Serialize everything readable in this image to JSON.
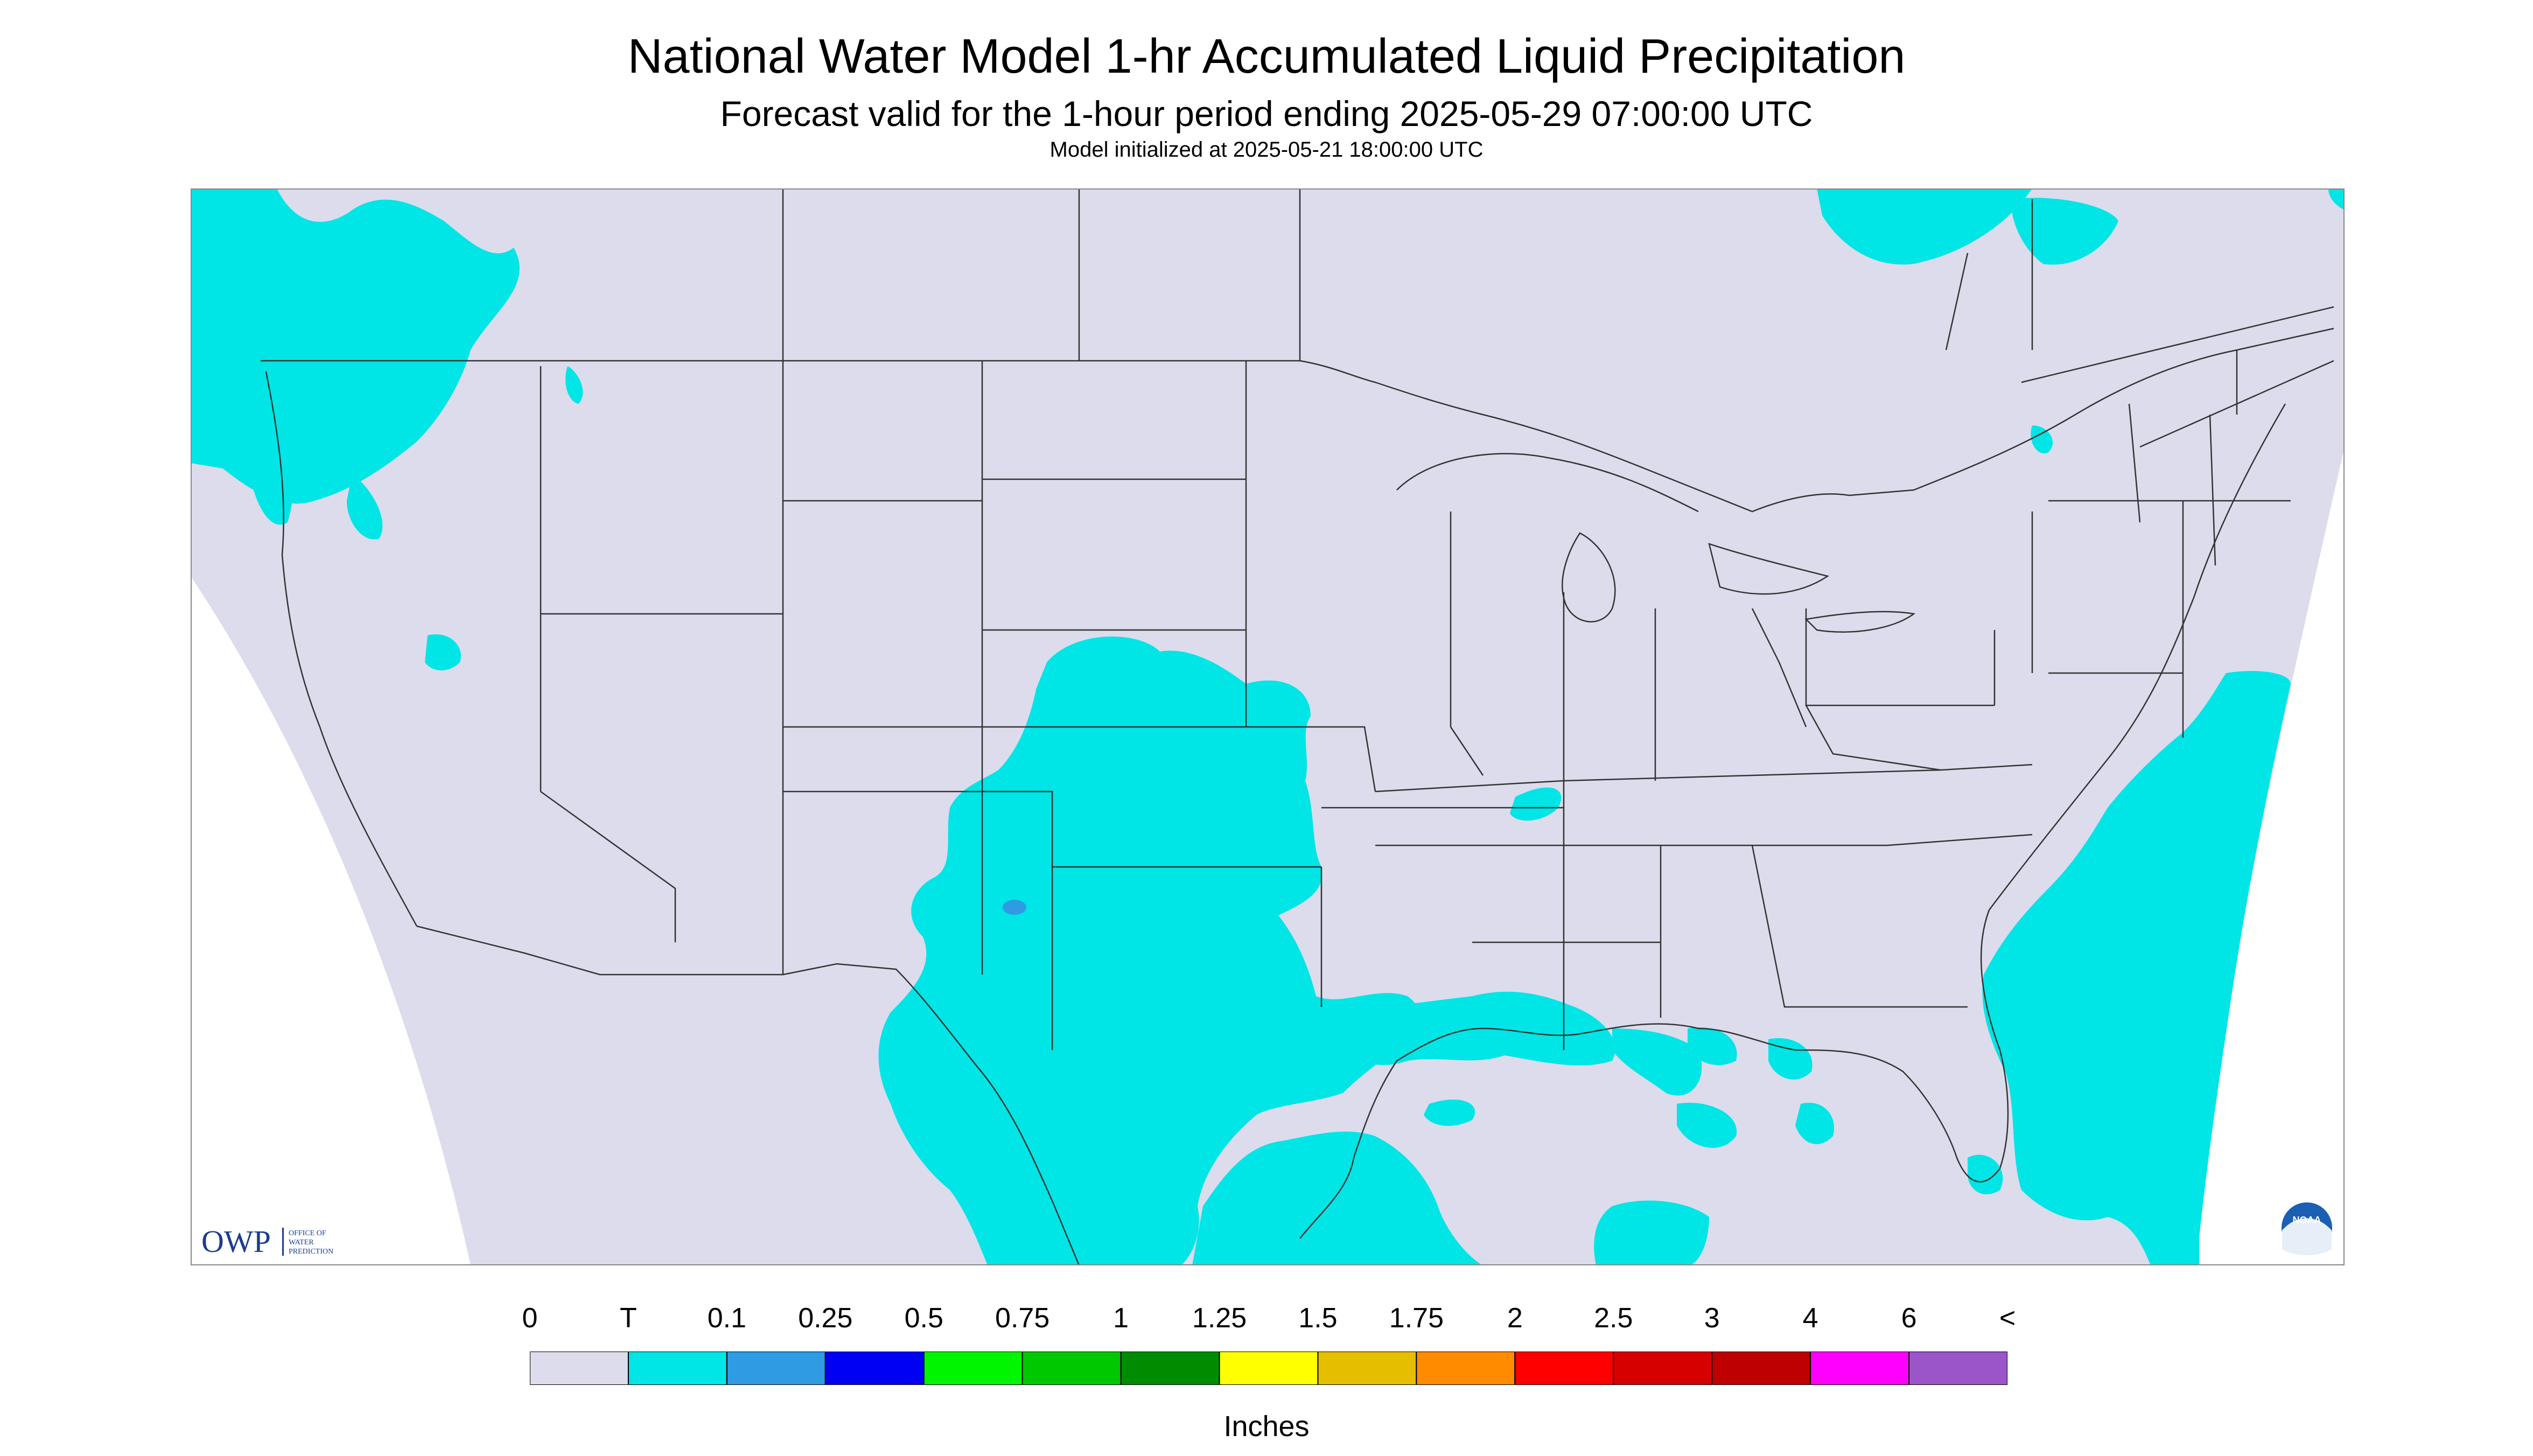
{
  "header": {
    "title": "National Water Model 1-hr Accumulated Liquid Precipitation",
    "subtitle": "Forecast valid for the 1-hour period ending 2025-05-29 07:00:00 UTC",
    "init": "Model initialized at 2025-05-21 18:00:00 UTC"
  },
  "map": {
    "region": "Contiguous United States",
    "background_color": "#dcdcec",
    "outside_color": "#ffffff",
    "border_color": "#333333",
    "precip_color_trace": "#00e5e5",
    "precip_color_01": "#2f9be3"
  },
  "logos": {
    "owp_mark": "OWP",
    "owp_text_1": "OFFICE OF",
    "owp_text_2": "WATER",
    "owp_text_3": "PREDICTION",
    "noaa_text": "NOAA"
  },
  "legend": {
    "labels": [
      "0",
      "T",
      "0.1",
      "0.25",
      "0.5",
      "0.75",
      "1",
      "1.25",
      "1.5",
      "1.75",
      "2",
      "2.5",
      "3",
      "4",
      "6",
      "<"
    ],
    "colors": [
      "#dcdcec",
      "#00e5e5",
      "#2f9be3",
      "#0000f5",
      "#00f500",
      "#00c800",
      "#008c00",
      "#ffff00",
      "#e6be00",
      "#ff8c00",
      "#ff0000",
      "#d70000",
      "#be0000",
      "#ff00ff",
      "#9b55c9"
    ],
    "units": "Inches"
  }
}
